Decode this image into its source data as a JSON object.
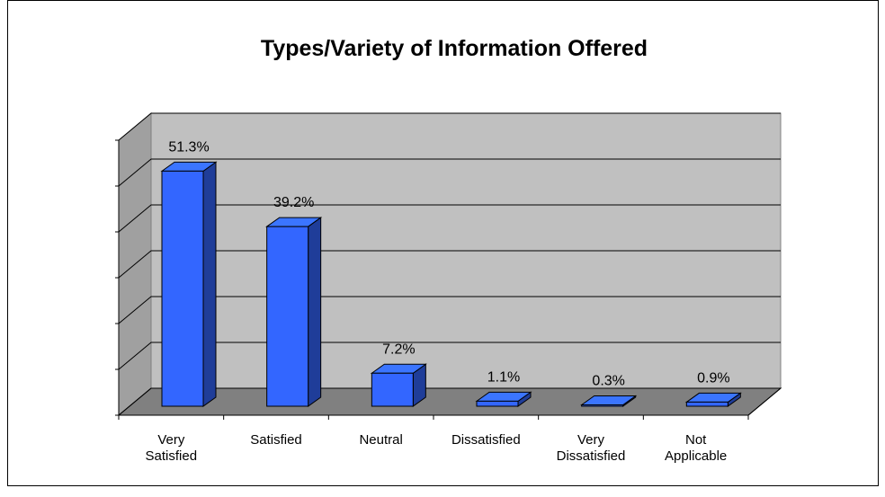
{
  "chart_data": {
    "type": "bar3d",
    "title": "Types/Variety of Information Offered",
    "categories": [
      "Very\nSatisfied",
      "Satisfied",
      "Neutral",
      "Dissatisfied",
      "Very\nDissatisfied",
      "Not\nApplicable"
    ],
    "values": [
      51.3,
      39.2,
      7.2,
      1.1,
      0.3,
      0.9
    ],
    "value_labels": [
      "51.3%",
      "39.2%",
      "7.2%",
      "1.1%",
      "0.3%",
      "0.9%"
    ],
    "color": "#3366ff",
    "ylim": [
      0,
      60
    ],
    "yticks": [
      0,
      10,
      20,
      30,
      40,
      50,
      60
    ],
    "grid": true
  }
}
